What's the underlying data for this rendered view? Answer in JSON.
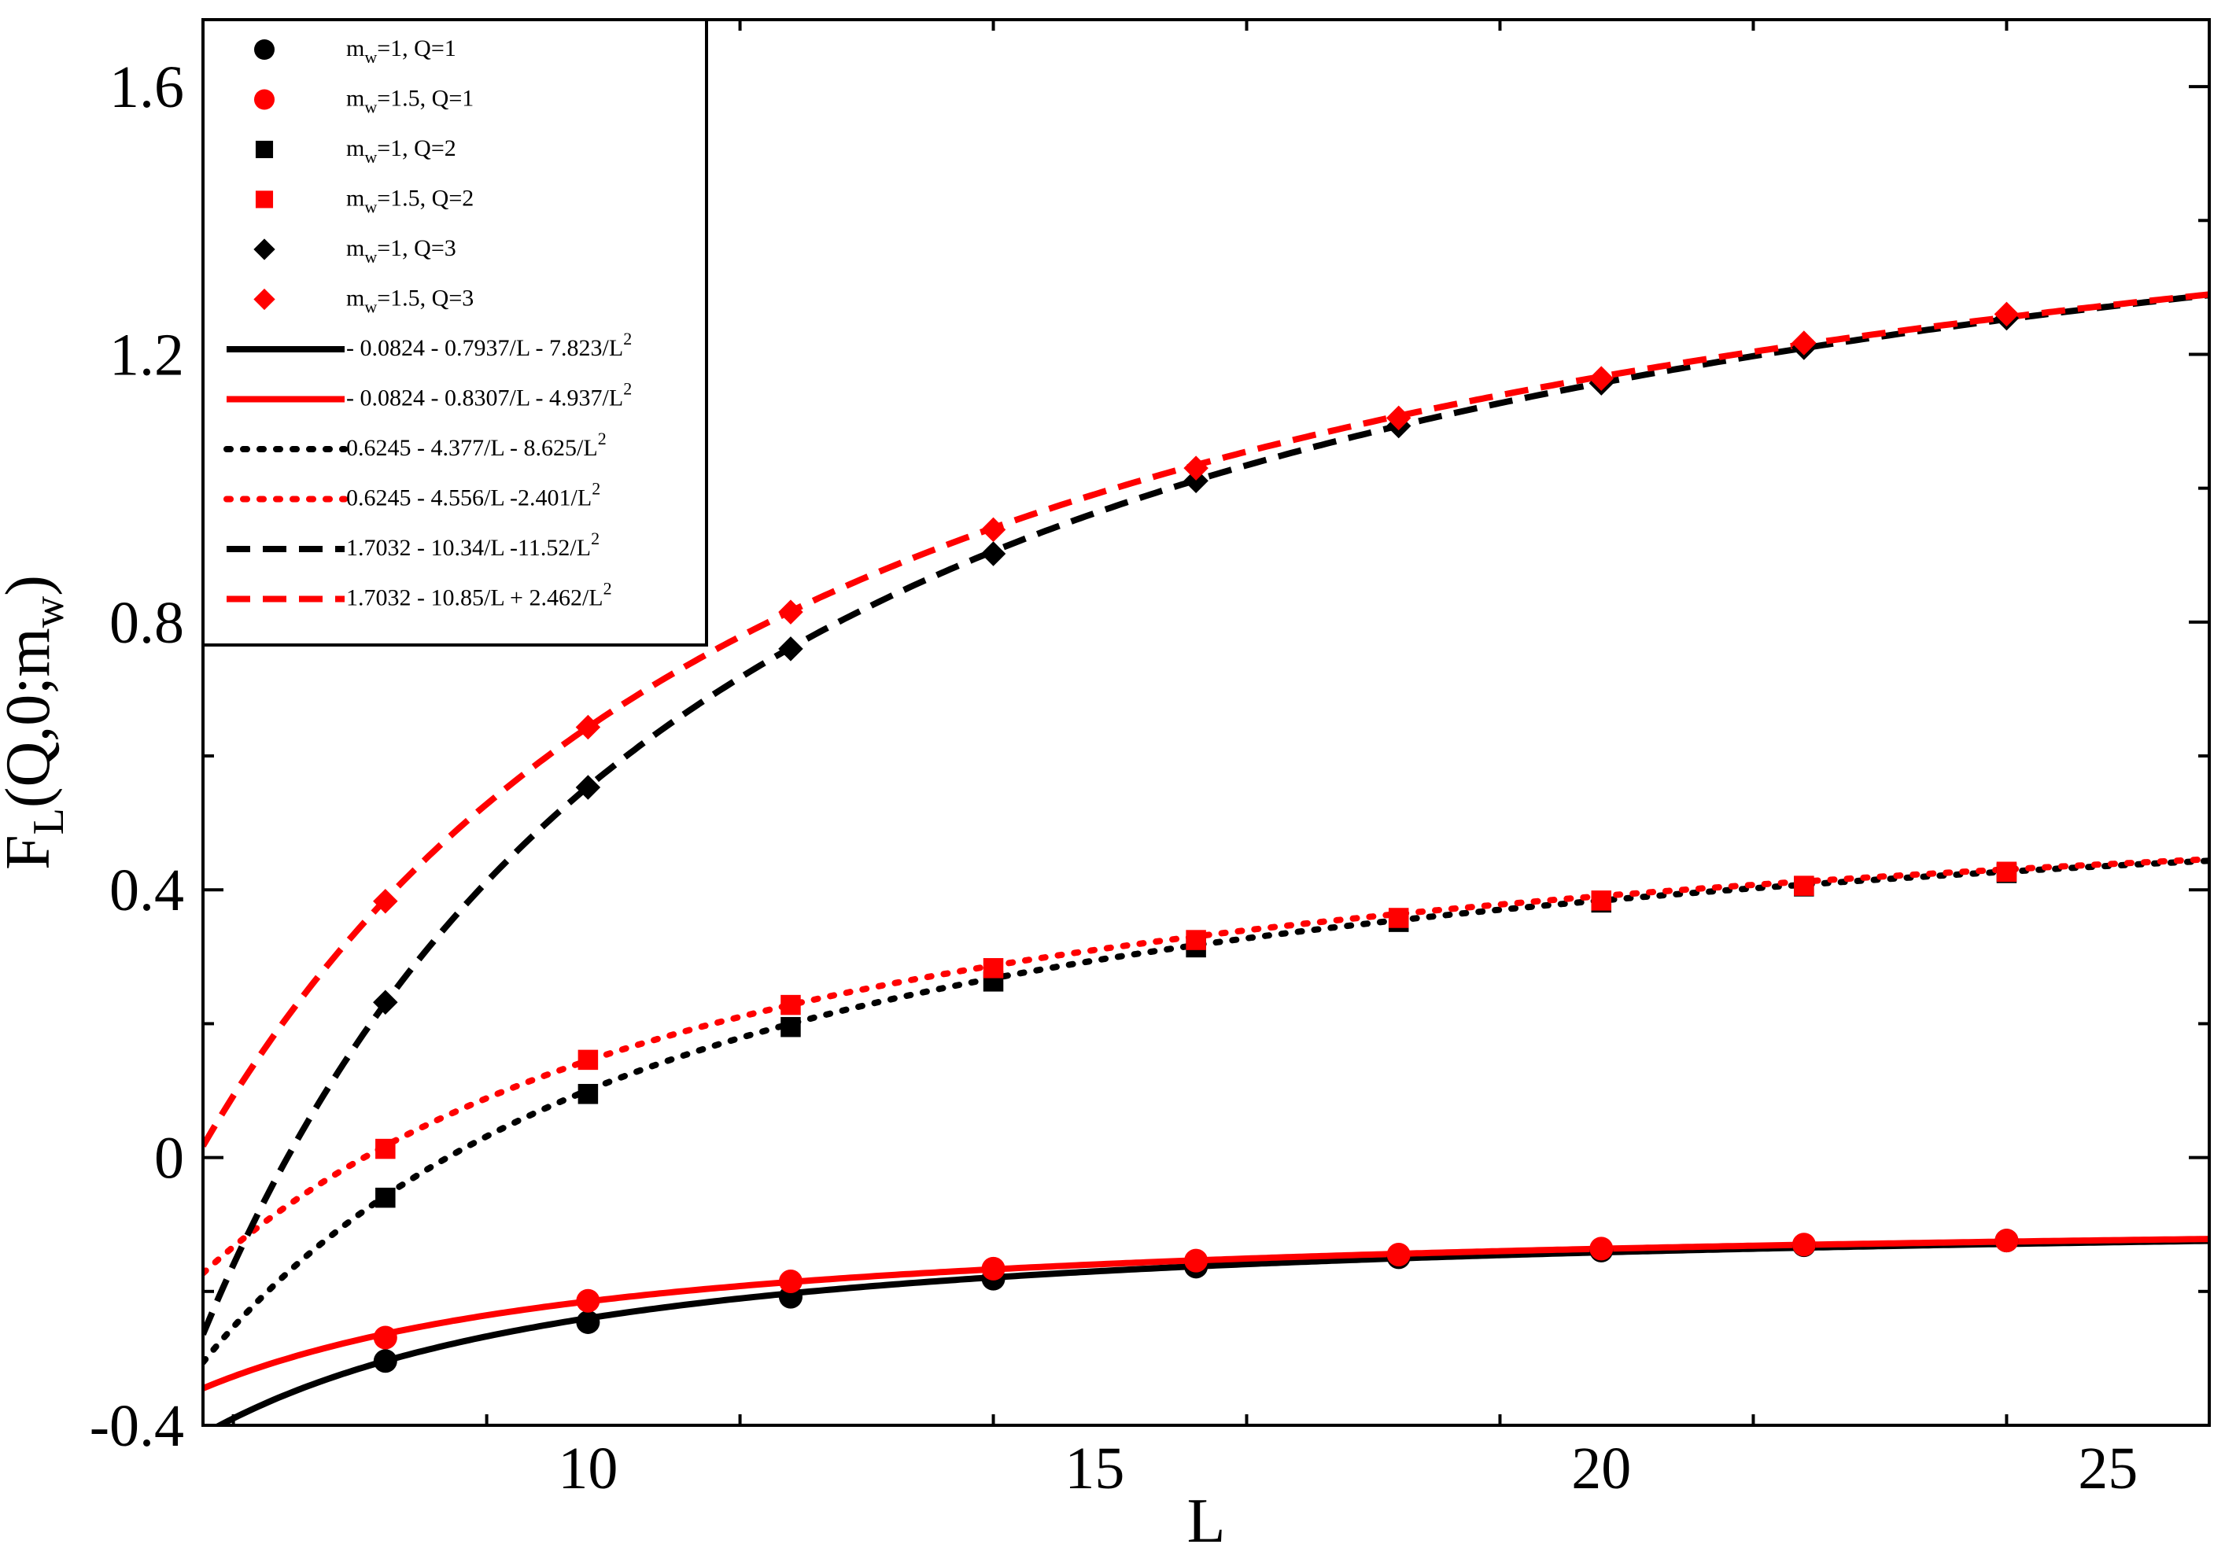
{
  "chart_data": {
    "type": "scatter",
    "xlabel": "L",
    "ylabel": "F",
    "ylabel_sub": "L",
    "ylabel_rest": "(Q,0;m",
    "ylabel_sub2": "w",
    "ylabel_end": ")",
    "xlim": [
      6.2,
      26
    ],
    "ylim": [
      -0.4,
      1.7
    ],
    "x_ticks": [
      10,
      15,
      20,
      25
    ],
    "x_tick_labels": [
      "10",
      "15",
      "20",
      "25"
    ],
    "y_ticks": [
      -0.4,
      0,
      0.4,
      0.8,
      1.2,
      1.6
    ],
    "y_tick_labels": [
      "-0.4",
      "0",
      "0.4",
      "0.8",
      "1.2",
      "1.6"
    ],
    "legend_position": "top-left",
    "colors": {
      "black": "#000000",
      "red": "#ff0000"
    },
    "series": [
      {
        "name": "m_w=1, Q=1",
        "label_parts": [
          "m",
          "w",
          "=1, Q=1"
        ],
        "kind": "marker",
        "marker": "circle",
        "color": "#000000",
        "x": [
          8,
          10,
          12,
          14,
          16,
          18,
          20,
          22,
          24
        ],
        "y": [
          -0.304,
          -0.246,
          -0.208,
          -0.181,
          -0.163,
          -0.149,
          -0.139,
          -0.131,
          -0.124
        ]
      },
      {
        "name": "m_w=1.5, Q=1",
        "label_parts": [
          "m",
          "w",
          "=1.5, Q=1"
        ],
        "kind": "marker",
        "marker": "circle",
        "color": "#ff0000",
        "x": [
          8,
          10,
          12,
          14,
          16,
          18,
          20,
          22,
          24
        ],
        "y": [
          -0.269,
          -0.214,
          -0.185,
          -0.166,
          -0.154,
          -0.145,
          -0.136,
          -0.13,
          -0.124
        ]
      },
      {
        "name": "m_w=1, Q=2",
        "label_parts": [
          "m",
          "w",
          "=1, Q=2"
        ],
        "kind": "marker",
        "marker": "square",
        "color": "#000000",
        "x": [
          8,
          10,
          12,
          14,
          16,
          18,
          20,
          22,
          24
        ],
        "y": [
          -0.06,
          0.095,
          0.195,
          0.263,
          0.314,
          0.352,
          0.381,
          0.405,
          0.425
        ]
      },
      {
        "name": "m_w=1.5, Q=2",
        "label_parts": [
          "m",
          "w",
          "=1.5, Q=2"
        ],
        "kind": "marker",
        "marker": "square",
        "color": "#ff0000",
        "x": [
          8,
          10,
          12,
          14,
          16,
          18,
          20,
          22,
          24
        ],
        "y": [
          0.013,
          0.146,
          0.228,
          0.283,
          0.325,
          0.358,
          0.384,
          0.406,
          0.427
        ]
      },
      {
        "name": "m_w=1, Q=3",
        "label_parts": [
          "m",
          "w",
          "=1, Q=3"
        ],
        "kind": "marker",
        "marker": "diamond",
        "color": "#000000",
        "x": [
          8,
          10,
          12,
          14,
          16,
          18,
          20,
          22,
          24
        ],
        "y": [
          0.232,
          0.553,
          0.76,
          0.902,
          1.011,
          1.093,
          1.157,
          1.21,
          1.254
        ]
      },
      {
        "name": "m_w=1.5, Q=3",
        "label_parts": [
          "m",
          "w",
          "=1.5, Q=3"
        ],
        "kind": "marker",
        "marker": "diamond",
        "color": "#ff0000",
        "x": [
          8,
          10,
          12,
          14,
          16,
          18,
          20,
          22,
          24
        ],
        "y": [
          0.383,
          0.643,
          0.815,
          0.938,
          1.03,
          1.105,
          1.164,
          1.217,
          1.26
        ]
      },
      {
        "name": "- 0.0824 - 0.7937/L - 7.823/L2",
        "label_parts": [
          "- 0.0824 - 0.7937/L - 7.823/L",
          "2",
          ""
        ],
        "kind": "line",
        "dash": "solid",
        "color": "#000000",
        "coef": [
          -0.0824,
          -0.7937,
          -7.823
        ]
      },
      {
        "name": "- 0.0824 - 0.8307/L - 4.937/L2",
        "label_parts": [
          "- 0.0824 - 0.8307/L - 4.937/L",
          "2",
          ""
        ],
        "kind": "line",
        "dash": "solid",
        "color": "#ff0000",
        "coef": [
          -0.0824,
          -0.8307,
          -4.937
        ]
      },
      {
        "name": "0.6245 - 4.377/L - 8.625/L2",
        "label_parts": [
          "0.6245 - 4.377/L - 8.625/L",
          "2",
          ""
        ],
        "kind": "line",
        "dash": "dotted",
        "color": "#000000",
        "coef": [
          0.6245,
          -4.377,
          -8.625
        ]
      },
      {
        "name": "0.6245 - 4.556/L -2.401/L2",
        "label_parts": [
          "0.6245 - 4.556/L -2.401/L",
          "2",
          ""
        ],
        "kind": "line",
        "dash": "dotted",
        "color": "#ff0000",
        "coef": [
          0.6245,
          -4.556,
          -2.401
        ]
      },
      {
        "name": "1.7032 - 10.34/L -11.52/L2",
        "label_parts": [
          "1.7032 - 10.34/L -11.52/L",
          "2",
          ""
        ],
        "kind": "line",
        "dash": "dashed",
        "color": "#000000",
        "coef": [
          1.7032,
          -10.34,
          -11.52
        ]
      },
      {
        "name": "1.7032 - 10.85/L + 2.462/L2",
        "label_parts": [
          "1.7032 - 10.85/L + 2.462/L",
          "2",
          ""
        ],
        "kind": "line",
        "dash": "dashed",
        "color": "#ff0000",
        "coef": [
          1.7032,
          -10.85,
          2.462
        ]
      }
    ]
  }
}
